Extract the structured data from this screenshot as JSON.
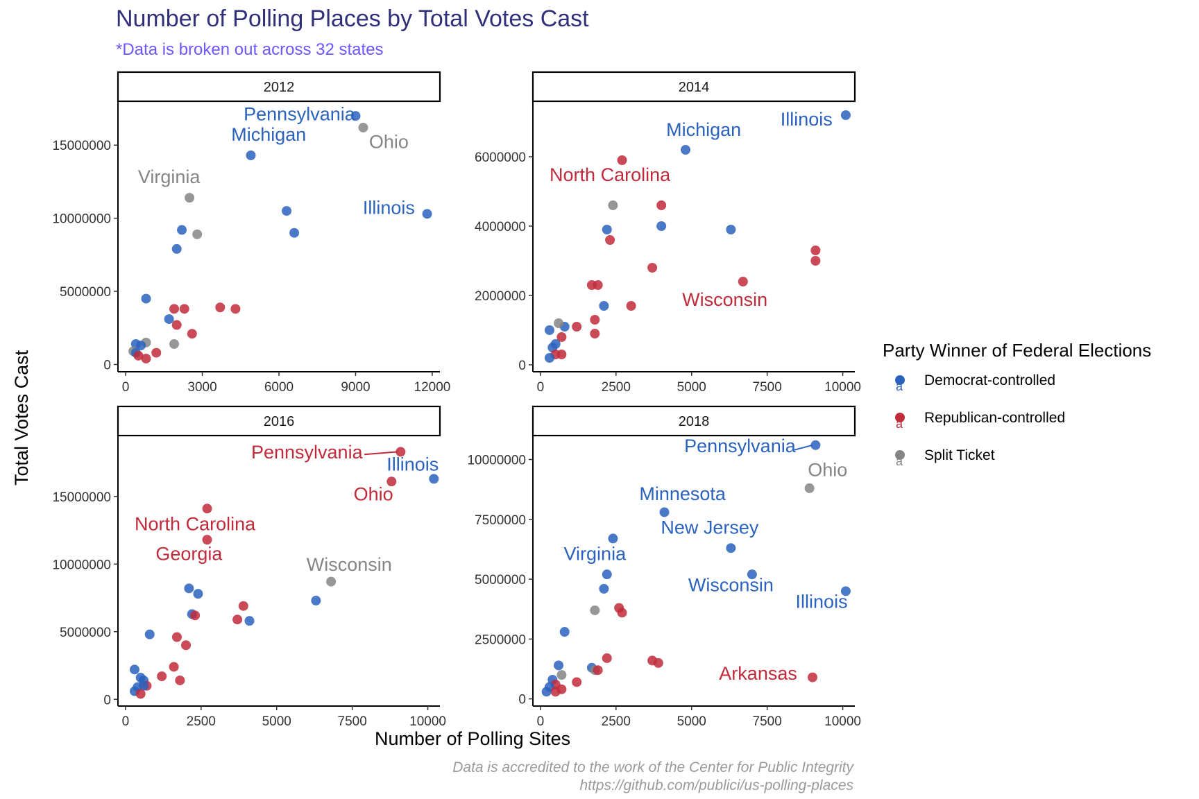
{
  "title": "Number of Polling Places by Total Votes Cast",
  "subtitle": "*Data is broken out across 32 states",
  "caption": {
    "line1": "Data is accredited to the work of the Center for Public Integrity",
    "line2": "https://github.com/publici/us-polling-places"
  },
  "xlabel": "Number of Polling Sites",
  "ylabel": "Total Votes Cast",
  "legend": {
    "title": "Party Winner of Federal Elections",
    "glyph": "a",
    "items": [
      {
        "label": "Democrat-controlled",
        "color": "#2a62bd"
      },
      {
        "label": "Republican-controlled",
        "color": "#c12a3a"
      },
      {
        "label": "Split Ticket",
        "color": "#858585"
      }
    ]
  },
  "colors": {
    "D": "#2a62bd",
    "R": "#c12a3a",
    "S": "#858585"
  },
  "chart_data": [
    {
      "type": "scatter",
      "facet": "2012",
      "xlim": [
        -300,
        12300
      ],
      "ylim": [
        -500000,
        18000000
      ],
      "xticks": [
        0,
        3000,
        6000,
        9000,
        12000
      ],
      "xtick_labels": [
        "0",
        "3000",
        "6000",
        "9000",
        "12000"
      ],
      "yticks": [
        0,
        5000000,
        10000000,
        15000000
      ],
      "ytick_labels": [
        "0",
        "5000000",
        "10000000",
        "15000000"
      ],
      "points": [
        {
          "x": 9000,
          "y": 17000000,
          "party": "D"
        },
        {
          "x": 9300,
          "y": 16200000,
          "party": "S"
        },
        {
          "x": 4900,
          "y": 14300000,
          "party": "D"
        },
        {
          "x": 2500,
          "y": 11400000,
          "party": "S"
        },
        {
          "x": 11800,
          "y": 10300000,
          "party": "D"
        },
        {
          "x": 6300,
          "y": 10500000,
          "party": "D"
        },
        {
          "x": 6600,
          "y": 9000000,
          "party": "D"
        },
        {
          "x": 2200,
          "y": 9200000,
          "party": "D"
        },
        {
          "x": 2800,
          "y": 8900000,
          "party": "S"
        },
        {
          "x": 2000,
          "y": 7900000,
          "party": "D"
        },
        {
          "x": 800,
          "y": 4500000,
          "party": "D"
        },
        {
          "x": 1900,
          "y": 3800000,
          "party": "R"
        },
        {
          "x": 2300,
          "y": 3800000,
          "party": "R"
        },
        {
          "x": 3700,
          "y": 3900000,
          "party": "R"
        },
        {
          "x": 4300,
          "y": 3800000,
          "party": "R"
        },
        {
          "x": 1700,
          "y": 3100000,
          "party": "D"
        },
        {
          "x": 2000,
          "y": 2700000,
          "party": "R"
        },
        {
          "x": 2600,
          "y": 2100000,
          "party": "R"
        },
        {
          "x": 1900,
          "y": 1400000,
          "party": "S"
        },
        {
          "x": 800,
          "y": 1500000,
          "party": "S"
        },
        {
          "x": 400,
          "y": 1400000,
          "party": "D"
        },
        {
          "x": 600,
          "y": 1300000,
          "party": "D"
        },
        {
          "x": 300,
          "y": 900000,
          "party": "S"
        },
        {
          "x": 400,
          "y": 800000,
          "party": "D"
        },
        {
          "x": 1200,
          "y": 800000,
          "party": "R"
        },
        {
          "x": 500,
          "y": 600000,
          "party": "R"
        },
        {
          "x": 800,
          "y": 400000,
          "party": "R"
        }
      ],
      "labels": [
        {
          "text": "Pennsylvania",
          "x": 6800,
          "y": 16700000,
          "party": "D"
        },
        {
          "text": "Michigan",
          "x": 5600,
          "y": 15300000,
          "party": "D"
        },
        {
          "text": "Ohio",
          "x": 10300,
          "y": 14800000,
          "party": "S"
        },
        {
          "text": "Virginia",
          "x": 1700,
          "y": 12400000,
          "party": "S"
        },
        {
          "text": "Illinois",
          "x": 10300,
          "y": 10300000,
          "party": "D"
        }
      ]
    },
    {
      "type": "scatter",
      "facet": "2014",
      "xlim": [
        -250,
        10400
      ],
      "ylim": [
        -200000,
        7600000
      ],
      "xticks": [
        0,
        2500,
        5000,
        7500,
        10000
      ],
      "xtick_labels": [
        "0",
        "2500",
        "5000",
        "7500",
        "10000"
      ],
      "yticks": [
        0,
        2000000,
        4000000,
        6000000
      ],
      "ytick_labels": [
        "0",
        "2000000",
        "4000000",
        "6000000"
      ],
      "points": [
        {
          "x": 10100,
          "y": 7200000,
          "party": "D"
        },
        {
          "x": 4800,
          "y": 6200000,
          "party": "D"
        },
        {
          "x": 2700,
          "y": 5900000,
          "party": "R"
        },
        {
          "x": 2400,
          "y": 4600000,
          "party": "S"
        },
        {
          "x": 4000,
          "y": 4600000,
          "party": "R"
        },
        {
          "x": 4000,
          "y": 4000000,
          "party": "D"
        },
        {
          "x": 2200,
          "y": 3900000,
          "party": "D"
        },
        {
          "x": 6300,
          "y": 3900000,
          "party": "D"
        },
        {
          "x": 2300,
          "y": 3600000,
          "party": "R"
        },
        {
          "x": 9100,
          "y": 3300000,
          "party": "R"
        },
        {
          "x": 9100,
          "y": 3000000,
          "party": "R"
        },
        {
          "x": 3700,
          "y": 2800000,
          "party": "R"
        },
        {
          "x": 6700,
          "y": 2400000,
          "party": "R"
        },
        {
          "x": 1700,
          "y": 2300000,
          "party": "R"
        },
        {
          "x": 1900,
          "y": 2300000,
          "party": "R"
        },
        {
          "x": 2100,
          "y": 1700000,
          "party": "D"
        },
        {
          "x": 3000,
          "y": 1700000,
          "party": "R"
        },
        {
          "x": 1800,
          "y": 1300000,
          "party": "R"
        },
        {
          "x": 1800,
          "y": 900000,
          "party": "R"
        },
        {
          "x": 1200,
          "y": 1100000,
          "party": "R"
        },
        {
          "x": 800,
          "y": 1100000,
          "party": "D"
        },
        {
          "x": 600,
          "y": 1200000,
          "party": "S"
        },
        {
          "x": 300,
          "y": 1000000,
          "party": "D"
        },
        {
          "x": 700,
          "y": 800000,
          "party": "R"
        },
        {
          "x": 500,
          "y": 600000,
          "party": "D"
        },
        {
          "x": 400,
          "y": 500000,
          "party": "D"
        },
        {
          "x": 700,
          "y": 300000,
          "party": "R"
        },
        {
          "x": 500,
          "y": 300000,
          "party": "R"
        },
        {
          "x": 300,
          "y": 200000,
          "party": "D"
        }
      ],
      "labels": [
        {
          "text": "Illinois",
          "x": 8800,
          "y": 6900000,
          "party": "D"
        },
        {
          "text": "Michigan",
          "x": 5400,
          "y": 6600000,
          "party": "D"
        },
        {
          "text": "North Carolina",
          "x": 2300,
          "y": 5300000,
          "party": "R"
        },
        {
          "text": "Wisconsin",
          "x": 6100,
          "y": 1700000,
          "party": "R"
        }
      ]
    },
    {
      "type": "scatter",
      "facet": "2016",
      "xlim": [
        -250,
        10400
      ],
      "ylim": [
        -500000,
        19500000
      ],
      "xticks": [
        0,
        2500,
        5000,
        7500,
        10000
      ],
      "xtick_labels": [
        "0",
        "2500",
        "5000",
        "7500",
        "10000"
      ],
      "yticks": [
        0,
        5000000,
        10000000,
        15000000
      ],
      "ytick_labels": [
        "0",
        "5000000",
        "10000000",
        "15000000"
      ],
      "points": [
        {
          "x": 9100,
          "y": 18300000,
          "party": "R"
        },
        {
          "x": 10200,
          "y": 16300000,
          "party": "D"
        },
        {
          "x": 8800,
          "y": 16100000,
          "party": "R"
        },
        {
          "x": 2700,
          "y": 14100000,
          "party": "R"
        },
        {
          "x": 2700,
          "y": 11800000,
          "party": "R"
        },
        {
          "x": 6800,
          "y": 8700000,
          "party": "S"
        },
        {
          "x": 2100,
          "y": 8200000,
          "party": "D"
        },
        {
          "x": 2400,
          "y": 7800000,
          "party": "D"
        },
        {
          "x": 6300,
          "y": 7300000,
          "party": "D"
        },
        {
          "x": 3900,
          "y": 6900000,
          "party": "R"
        },
        {
          "x": 2200,
          "y": 6300000,
          "party": "D"
        },
        {
          "x": 2300,
          "y": 6200000,
          "party": "R"
        },
        {
          "x": 3700,
          "y": 5900000,
          "party": "R"
        },
        {
          "x": 4100,
          "y": 5800000,
          "party": "D"
        },
        {
          "x": 800,
          "y": 4800000,
          "party": "D"
        },
        {
          "x": 1700,
          "y": 4600000,
          "party": "R"
        },
        {
          "x": 2000,
          "y": 4000000,
          "party": "R"
        },
        {
          "x": 1600,
          "y": 2400000,
          "party": "R"
        },
        {
          "x": 300,
          "y": 2200000,
          "party": "D"
        },
        {
          "x": 1200,
          "y": 1700000,
          "party": "R"
        },
        {
          "x": 500,
          "y": 1600000,
          "party": "D"
        },
        {
          "x": 600,
          "y": 1400000,
          "party": "D"
        },
        {
          "x": 1800,
          "y": 1400000,
          "party": "R"
        },
        {
          "x": 700,
          "y": 1000000,
          "party": "R"
        },
        {
          "x": 400,
          "y": 900000,
          "party": "D"
        },
        {
          "x": 600,
          "y": 1000000,
          "party": "D"
        },
        {
          "x": 300,
          "y": 600000,
          "party": "D"
        },
        {
          "x": 500,
          "y": 400000,
          "party": "R"
        }
      ],
      "labels": [
        {
          "text": "Pennsylvania",
          "x": 6000,
          "y": 17800000,
          "party": "R"
        },
        {
          "text": "Illinois",
          "x": 9500,
          "y": 16900000,
          "party": "D"
        },
        {
          "text": "Ohio",
          "x": 8200,
          "y": 14700000,
          "party": "R"
        },
        {
          "text": "North Carolina",
          "x": 2300,
          "y": 12500000,
          "party": "R"
        },
        {
          "text": "Georgia",
          "x": 2100,
          "y": 10300000,
          "party": "R"
        },
        {
          "text": "Wisconsin",
          "x": 7400,
          "y": 9500000,
          "party": "S"
        }
      ],
      "segments": [
        {
          "x1": 7900,
          "y1": 18100000,
          "x2": 9000,
          "y2": 18300000,
          "party": "R"
        }
      ]
    },
    {
      "type": "scatter",
      "facet": "2018",
      "xlim": [
        -250,
        10400
      ],
      "ylim": [
        -300000,
        11000000
      ],
      "xticks": [
        0,
        2500,
        5000,
        7500,
        10000
      ],
      "xtick_labels": [
        "0",
        "2500",
        "5000",
        "7500",
        "10000"
      ],
      "yticks": [
        0,
        2500000,
        5000000,
        7500000,
        10000000
      ],
      "ytick_labels": [
        "0",
        "2500000",
        "5000000",
        "7500000",
        "10000000"
      ],
      "points": [
        {
          "x": 9100,
          "y": 10600000,
          "party": "D"
        },
        {
          "x": 8900,
          "y": 8800000,
          "party": "S"
        },
        {
          "x": 4100,
          "y": 7800000,
          "party": "D"
        },
        {
          "x": 2400,
          "y": 6700000,
          "party": "D"
        },
        {
          "x": 6300,
          "y": 6300000,
          "party": "D"
        },
        {
          "x": 7000,
          "y": 5200000,
          "party": "D"
        },
        {
          "x": 2200,
          "y": 5200000,
          "party": "D"
        },
        {
          "x": 2100,
          "y": 4600000,
          "party": "D"
        },
        {
          "x": 10100,
          "y": 4500000,
          "party": "D"
        },
        {
          "x": 1800,
          "y": 3700000,
          "party": "S"
        },
        {
          "x": 2600,
          "y": 3800000,
          "party": "R"
        },
        {
          "x": 2700,
          "y": 3600000,
          "party": "R"
        },
        {
          "x": 800,
          "y": 2800000,
          "party": "D"
        },
        {
          "x": 2200,
          "y": 1700000,
          "party": "R"
        },
        {
          "x": 3700,
          "y": 1600000,
          "party": "R"
        },
        {
          "x": 3900,
          "y": 1500000,
          "party": "R"
        },
        {
          "x": 600,
          "y": 1400000,
          "party": "D"
        },
        {
          "x": 1700,
          "y": 1300000,
          "party": "D"
        },
        {
          "x": 1800,
          "y": 1200000,
          "party": "S"
        },
        {
          "x": 1900,
          "y": 1200000,
          "party": "R"
        },
        {
          "x": 700,
          "y": 1000000,
          "party": "S"
        },
        {
          "x": 9000,
          "y": 900000,
          "party": "R"
        },
        {
          "x": 400,
          "y": 800000,
          "party": "D"
        },
        {
          "x": 1200,
          "y": 700000,
          "party": "R"
        },
        {
          "x": 500,
          "y": 600000,
          "party": "R"
        },
        {
          "x": 300,
          "y": 500000,
          "party": "D"
        },
        {
          "x": 700,
          "y": 400000,
          "party": "R"
        },
        {
          "x": 500,
          "y": 300000,
          "party": "R"
        },
        {
          "x": 200,
          "y": 300000,
          "party": "D"
        }
      ],
      "labels": [
        {
          "text": "Pennsylvania",
          "x": 6600,
          "y": 10300000,
          "party": "D"
        },
        {
          "text": "Ohio",
          "x": 9500,
          "y": 9300000,
          "party": "S"
        },
        {
          "text": "Minnesota",
          "x": 4700,
          "y": 8300000,
          "party": "D"
        },
        {
          "text": "New Jersey",
          "x": 5600,
          "y": 6900000,
          "party": "D"
        },
        {
          "text": "Virginia",
          "x": 1800,
          "y": 5800000,
          "party": "D"
        },
        {
          "text": "Wisconsin",
          "x": 6300,
          "y": 4500000,
          "party": "D"
        },
        {
          "text": "Illinois",
          "x": 9300,
          "y": 3800000,
          "party": "D"
        },
        {
          "text": "Arkansas",
          "x": 7200,
          "y": 800000,
          "party": "R"
        }
      ],
      "segments": [
        {
          "x1": 8400,
          "y1": 10400000,
          "x2": 9000,
          "y2": 10600000,
          "party": "D"
        }
      ]
    }
  ]
}
